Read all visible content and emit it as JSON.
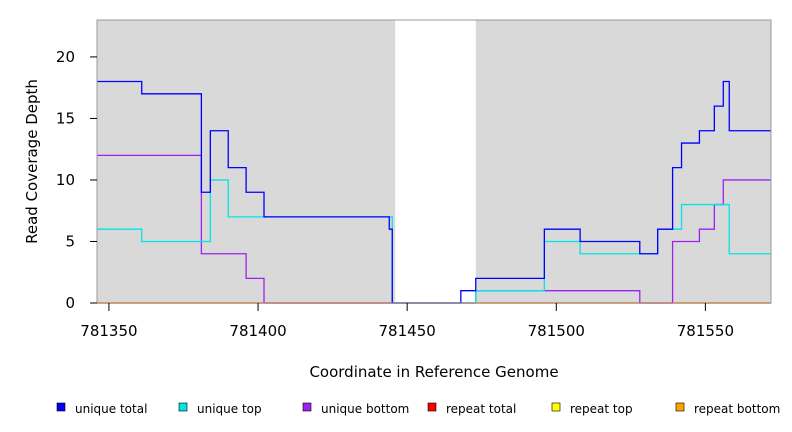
{
  "chart_data": {
    "type": "line",
    "step": true,
    "title": "",
    "xlabel": "Coordinate in Reference Genome",
    "ylabel": "Read Coverage Depth",
    "xlim": [
      781346,
      781572
    ],
    "ylim": [
      0,
      23
    ],
    "x_ticks": [
      781350,
      781400,
      781450,
      781500,
      781550
    ],
    "y_ticks": [
      0,
      5,
      10,
      15,
      20
    ],
    "background_color": "#d9d9d9",
    "background_gaps": [
      [
        781446,
        781473
      ]
    ],
    "legend_position": "bottom",
    "series": [
      {
        "name": "unique total",
        "color": "#0000ff",
        "points": [
          [
            781346,
            18
          ],
          [
            781361,
            17
          ],
          [
            781381,
            9
          ],
          [
            781384,
            14
          ],
          [
            781390,
            11
          ],
          [
            781396,
            9
          ],
          [
            781402,
            7
          ],
          [
            781444,
            6
          ],
          [
            781445,
            0
          ],
          [
            781468,
            1
          ],
          [
            781473,
            2
          ],
          [
            781496,
            6
          ],
          [
            781508,
            5
          ],
          [
            781528,
            4
          ],
          [
            781534,
            6
          ],
          [
            781539,
            11
          ],
          [
            781542,
            13
          ],
          [
            781548,
            14
          ],
          [
            781553,
            16
          ],
          [
            781556,
            18
          ],
          [
            781558,
            14
          ],
          [
            781572,
            14
          ]
        ]
      },
      {
        "name": "unique top",
        "color": "#00e5e5",
        "points": [
          [
            781346,
            6
          ],
          [
            781361,
            5
          ],
          [
            781384,
            10
          ],
          [
            781390,
            7
          ],
          [
            781402,
            7
          ],
          [
            781445,
            0
          ],
          [
            781473,
            1
          ],
          [
            781496,
            5
          ],
          [
            781508,
            4
          ],
          [
            781528,
            4
          ],
          [
            781534,
            6
          ],
          [
            781542,
            8
          ],
          [
            781558,
            4
          ],
          [
            781572,
            4
          ]
        ]
      },
      {
        "name": "unique bottom",
        "color": "#a020f0",
        "points": [
          [
            781346,
            12
          ],
          [
            781381,
            4
          ],
          [
            781396,
            2
          ],
          [
            781402,
            0
          ],
          [
            781473,
            1
          ],
          [
            781528,
            0
          ],
          [
            781539,
            5
          ],
          [
            781548,
            6
          ],
          [
            781553,
            8
          ],
          [
            781556,
            10
          ],
          [
            781572,
            10
          ]
        ]
      },
      {
        "name": "repeat total",
        "color": "#ff0000",
        "points": [
          [
            781346,
            0
          ],
          [
            781572,
            0
          ]
        ]
      },
      {
        "name": "repeat top",
        "color": "#ffff00",
        "points": [
          [
            781346,
            0
          ],
          [
            781572,
            0
          ]
        ]
      },
      {
        "name": "repeat bottom",
        "color": "#ffa500",
        "points": [
          [
            781346,
            0
          ],
          [
            781572,
            0
          ]
        ]
      }
    ]
  }
}
